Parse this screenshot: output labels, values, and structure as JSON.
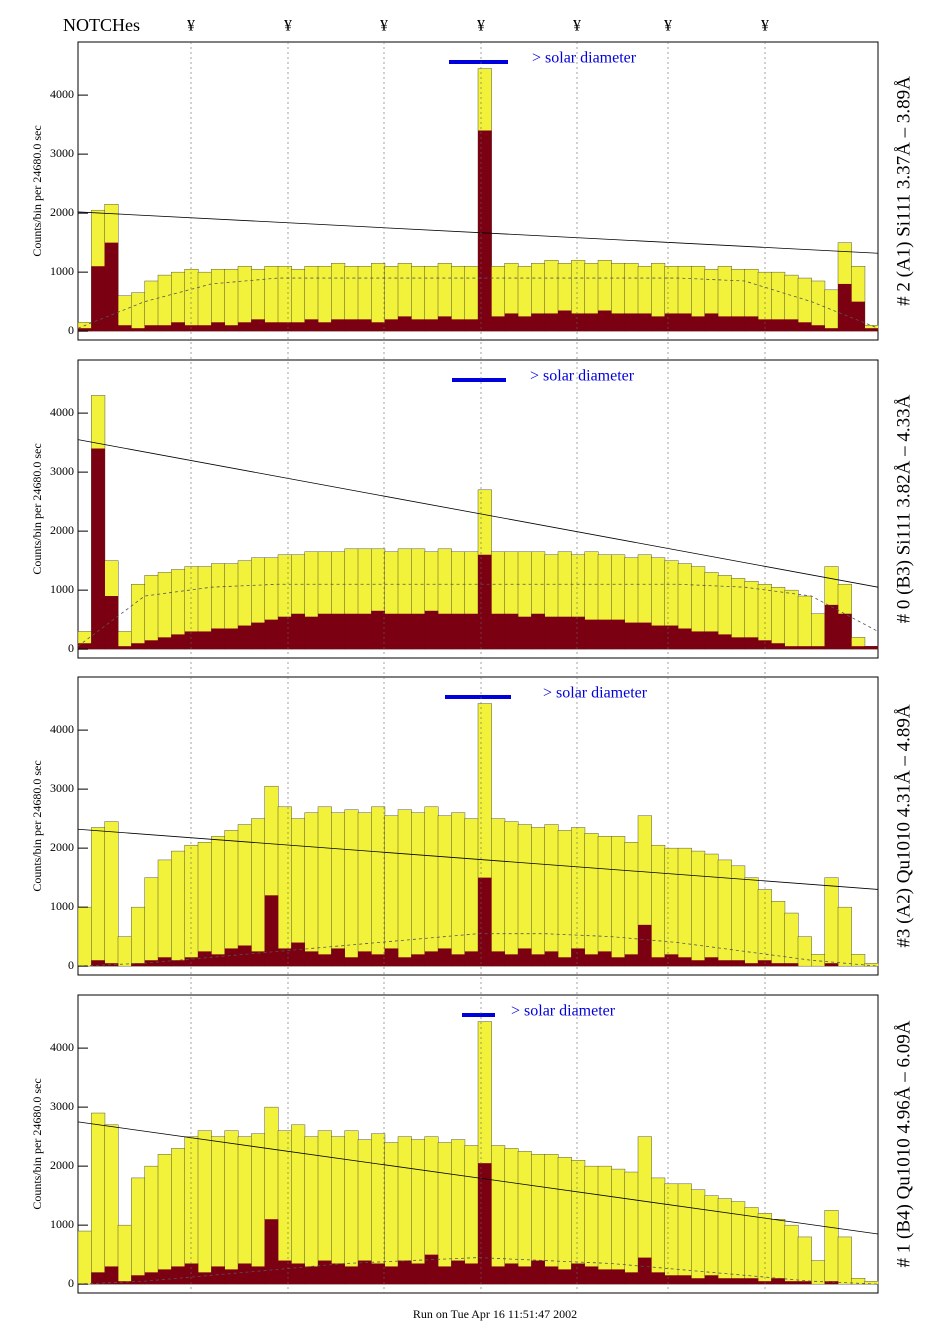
{
  "header": {
    "title": "NOTCHes",
    "notches": [
      "¥",
      "¥",
      "¥",
      "¥",
      "¥",
      "¥",
      "¥"
    ]
  },
  "chart_data": [
    {
      "type": "step",
      "ylabel": "Counts/bin per  24680.0 sec",
      "side_label": "# 2 (A1) Si111  3.37Å – 3.89Å",
      "annotation": "> solar diameter",
      "ylim": [
        -150,
        4900
      ],
      "yticks": [
        0,
        1000,
        2000,
        3000,
        4000
      ],
      "series": [
        {
          "color": "#f2f23a",
          "values": [
            150,
            2050,
            2150,
            600,
            650,
            850,
            950,
            1000,
            1050,
            1000,
            1050,
            1050,
            1100,
            1050,
            1100,
            1100,
            1050,
            1100,
            1100,
            1150,
            1100,
            1100,
            1150,
            1100,
            1150,
            1100,
            1100,
            1150,
            1100,
            1100,
            4450,
            1100,
            1150,
            1100,
            1150,
            1200,
            1150,
            1200,
            1150,
            1200,
            1150,
            1150,
            1100,
            1150,
            1100,
            1100,
            1100,
            1050,
            1100,
            1050,
            1050,
            1000,
            1000,
            950,
            900,
            850,
            700,
            1500,
            1100,
            100
          ]
        },
        {
          "color": "#7a0012",
          "values": [
            50,
            1100,
            1500,
            100,
            50,
            100,
            100,
            150,
            100,
            100,
            150,
            100,
            150,
            200,
            150,
            150,
            150,
            200,
            150,
            200,
            200,
            200,
            150,
            200,
            250,
            200,
            200,
            250,
            200,
            200,
            3400,
            250,
            300,
            250,
            300,
            300,
            350,
            300,
            300,
            350,
            300,
            300,
            300,
            250,
            300,
            300,
            250,
            300,
            250,
            250,
            250,
            200,
            200,
            200,
            150,
            100,
            50,
            800,
            500,
            50
          ]
        }
      ],
      "trend": [
        2020,
        1320
      ],
      "fit": [
        50,
        500,
        800,
        900,
        900,
        900,
        900,
        900,
        900,
        900,
        850,
        500,
        50
      ]
    },
    {
      "type": "step",
      "ylabel": "Counts/bin per  24680.0 sec",
      "side_label": "# 0 (B3) Si111  3.82Å – 4.33Å",
      "annotation": "> solar diameter",
      "ylim": [
        -150,
        4900
      ],
      "yticks": [
        0,
        1000,
        2000,
        3000,
        4000
      ],
      "series": [
        {
          "color": "#f2f23a",
          "values": [
            300,
            4300,
            1500,
            300,
            1100,
            1250,
            1300,
            1350,
            1400,
            1400,
            1450,
            1450,
            1500,
            1550,
            1550,
            1600,
            1600,
            1650,
            1650,
            1650,
            1700,
            1700,
            1700,
            1650,
            1700,
            1700,
            1650,
            1700,
            1650,
            1650,
            2700,
            1650,
            1650,
            1650,
            1650,
            1600,
            1650,
            1600,
            1650,
            1600,
            1600,
            1550,
            1600,
            1550,
            1500,
            1450,
            1400,
            1300,
            1250,
            1200,
            1150,
            1100,
            1050,
            1000,
            900,
            600,
            1400,
            1100,
            200,
            50
          ]
        },
        {
          "color": "#7a0012",
          "values": [
            100,
            3400,
            900,
            50,
            100,
            150,
            200,
            250,
            300,
            300,
            350,
            350,
            400,
            450,
            500,
            550,
            600,
            550,
            600,
            600,
            600,
            600,
            650,
            600,
            600,
            600,
            650,
            600,
            600,
            600,
            1600,
            600,
            600,
            550,
            600,
            550,
            550,
            550,
            500,
            500,
            500,
            450,
            450,
            400,
            400,
            350,
            300,
            300,
            250,
            200,
            200,
            150,
            100,
            50,
            50,
            50,
            750,
            600,
            50,
            50
          ]
        }
      ],
      "trend": [
        3550,
        1050
      ],
      "fit": [
        50,
        900,
        1050,
        1100,
        1100,
        1100,
        1100,
        1100,
        1100,
        1100,
        1050,
        900,
        300
      ]
    },
    {
      "type": "step",
      "ylabel": "Counts/bin per  24680.0 sec",
      "side_label": "#3 (A2) Qu1010  4.31Å – 4.89Å",
      "annotation": "> solar diameter",
      "ylim": [
        -150,
        4900
      ],
      "yticks": [
        0,
        1000,
        2000,
        3000,
        4000
      ],
      "series": [
        {
          "color": "#f2f23a",
          "values": [
            1000,
            2350,
            2450,
            500,
            1000,
            1500,
            1800,
            1950,
            2050,
            2100,
            2200,
            2300,
            2400,
            2500,
            3050,
            2700,
            2500,
            2600,
            2700,
            2600,
            2650,
            2600,
            2700,
            2550,
            2650,
            2600,
            2700,
            2550,
            2600,
            2500,
            4450,
            2500,
            2450,
            2400,
            2350,
            2400,
            2300,
            2350,
            2250,
            2200,
            2200,
            2100,
            2550,
            2050,
            2000,
            2000,
            1950,
            1900,
            1800,
            1700,
            1500,
            1300,
            1100,
            900,
            500,
            200,
            1500,
            1000,
            200,
            50
          ]
        },
        {
          "color": "#7a0012",
          "values": [
            0,
            100,
            50,
            0,
            50,
            100,
            150,
            100,
            150,
            250,
            200,
            300,
            350,
            250,
            1200,
            300,
            400,
            250,
            200,
            300,
            150,
            250,
            200,
            300,
            150,
            200,
            250,
            300,
            200,
            250,
            1500,
            250,
            200,
            300,
            200,
            250,
            150,
            300,
            200,
            250,
            150,
            200,
            700,
            150,
            200,
            150,
            100,
            150,
            100,
            100,
            50,
            100,
            50,
            50,
            0,
            0,
            50,
            0,
            0,
            0
          ]
        }
      ],
      "trend": [
        2320,
        1300
      ],
      "fit": [
        0,
        50,
        150,
        250,
        350,
        450,
        550,
        550,
        500,
        400,
        250,
        100,
        0
      ]
    },
    {
      "type": "step",
      "ylabel": "Counts/bin per  24680.0 sec",
      "side_label": "# 1 (B4) Qu1010 4.96Å – 6.09Å",
      "annotation": "> solar diameter",
      "ylim": [
        -150,
        4900
      ],
      "yticks": [
        0,
        1000,
        2000,
        3000,
        4000
      ],
      "series": [
        {
          "color": "#f2f23a",
          "values": [
            900,
            2900,
            2700,
            1000,
            1800,
            2000,
            2200,
            2300,
            2500,
            2600,
            2500,
            2600,
            2500,
            2550,
            3000,
            2600,
            2700,
            2500,
            2600,
            2500,
            2600,
            2450,
            2550,
            2400,
            2500,
            2450,
            2500,
            2400,
            2450,
            2350,
            4450,
            2350,
            2300,
            2250,
            2200,
            2200,
            2150,
            2100,
            2000,
            2000,
            1950,
            1900,
            2500,
            1800,
            1700,
            1700,
            1600,
            1500,
            1450,
            1400,
            1300,
            1200,
            1100,
            1000,
            800,
            400,
            1250,
            800,
            100,
            50
          ]
        },
        {
          "color": "#7a0012",
          "values": [
            0,
            200,
            300,
            50,
            150,
            200,
            250,
            300,
            350,
            200,
            300,
            250,
            350,
            300,
            1100,
            400,
            350,
            300,
            400,
            350,
            300,
            400,
            350,
            300,
            400,
            350,
            500,
            300,
            400,
            350,
            2050,
            300,
            350,
            300,
            400,
            300,
            250,
            350,
            300,
            250,
            250,
            200,
            450,
            200,
            150,
            150,
            100,
            150,
            100,
            100,
            100,
            50,
            100,
            50,
            50,
            0,
            50,
            0,
            0,
            0
          ]
        }
      ],
      "trend": [
        2750,
        850
      ],
      "fit": [
        0,
        50,
        150,
        250,
        350,
        400,
        450,
        400,
        350,
        250,
        150,
        50,
        0
      ]
    }
  ],
  "footer": "Run on Tue Apr 16 11:51:47 2002"
}
